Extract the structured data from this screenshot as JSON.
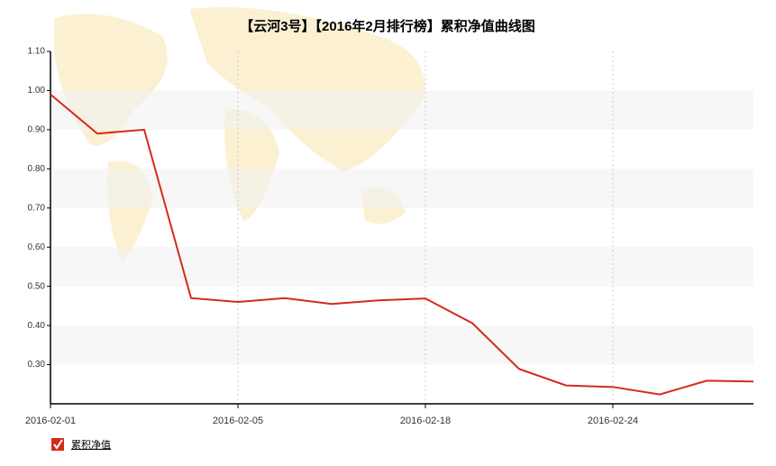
{
  "chart_data": {
    "type": "line",
    "title": "【云河3号】【2016年2月排行榜】累积净值曲线图",
    "categories": [
      "2016-02-01",
      null,
      null,
      null,
      "2016-02-05",
      null,
      null,
      null,
      "2016-02-18",
      null,
      null,
      null,
      "2016-02-24",
      null,
      null,
      null
    ],
    "series": [
      {
        "name": "累积净值",
        "color": "#d42a1c",
        "values": [
          0.99,
          0.89,
          0.9,
          0.47,
          0.46,
          0.47,
          0.455,
          0.464,
          0.469,
          0.406,
          0.289,
          0.247,
          0.243,
          0.224,
          0.259,
          0.257
        ]
      }
    ],
    "ylim": [
      0.2,
      1.1
    ],
    "yticks": [
      {
        "value": 0.3,
        "label": "0.30"
      },
      {
        "value": 0.4,
        "label": "0.40"
      },
      {
        "value": 0.5,
        "label": "0.50"
      },
      {
        "value": 0.6,
        "label": "0.60"
      },
      {
        "value": 0.7,
        "label": "0.70"
      },
      {
        "value": 0.8,
        "label": "0.80"
      },
      {
        "value": 0.9,
        "label": "0.90"
      },
      {
        "value": 1.0,
        "label": "1.00"
      },
      {
        "value": 1.1,
        "label": "1.10"
      }
    ],
    "grid": true
  }
}
